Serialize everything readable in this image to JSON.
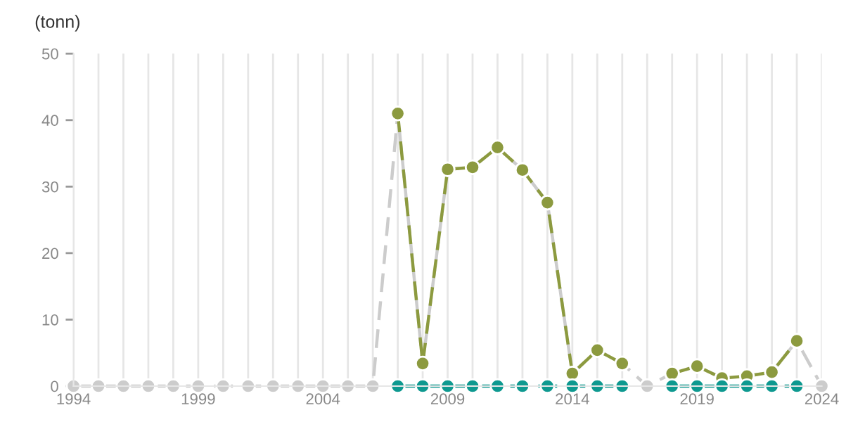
{
  "chart_data": {
    "type": "line",
    "ylabel": "(tonn)",
    "x": [
      1994,
      1995,
      1996,
      1997,
      1998,
      1999,
      2000,
      2001,
      2002,
      2003,
      2004,
      2005,
      2006,
      2007,
      2008,
      2009,
      2010,
      2011,
      2012,
      2013,
      2014,
      2015,
      2016,
      2017,
      2018,
      2019,
      2020,
      2021,
      2022,
      2023,
      2024
    ],
    "series": [
      {
        "color": "#cccccc",
        "line_style": "dashed",
        "values": [
          0,
          0,
          0,
          0,
          0,
          0,
          0,
          0,
          0,
          0,
          0,
          0,
          0,
          41.0,
          3.4,
          32.6,
          32.9,
          35.9,
          32.5,
          27.6,
          1.9,
          5.4,
          3.4,
          0,
          1.9,
          3.0,
          1.2,
          1.5,
          2.1,
          6.8,
          0
        ]
      },
      {
        "color": "#8c9a3f",
        "line_style": "dashed",
        "values": [
          null,
          null,
          null,
          null,
          null,
          null,
          null,
          null,
          null,
          null,
          null,
          null,
          null,
          41.0,
          3.4,
          32.6,
          32.9,
          35.9,
          32.5,
          27.6,
          1.9,
          5.4,
          3.4,
          null,
          1.9,
          3.0,
          1.2,
          1.5,
          2.1,
          6.8,
          null
        ]
      },
      {
        "color": "#0e9990",
        "line_style": "dashed",
        "values": [
          null,
          null,
          null,
          null,
          null,
          null,
          null,
          null,
          null,
          null,
          null,
          null,
          null,
          0,
          0,
          0,
          0,
          0,
          0,
          0,
          0,
          0,
          0,
          null,
          0,
          0,
          0,
          0,
          0,
          0,
          null
        ]
      }
    ],
    "xlim": [
      1994,
      2024
    ],
    "xticks": [
      1994,
      {
        "value": 1995,
        "label": null
      },
      {
        "value": 1996,
        "label": null
      },
      {
        "value": 1997,
        "label": null
      },
      {
        "value": 1998,
        "label": null
      },
      1999,
      {
        "value": 2000,
        "label": null
      },
      {
        "value": 2001,
        "label": null
      },
      {
        "value": 2002,
        "label": null
      },
      {
        "value": 2003,
        "label": null
      },
      2004,
      {
        "value": 2005,
        "label": null
      },
      {
        "value": 2006,
        "label": null
      },
      {
        "value": 2007,
        "label": null
      },
      {
        "value": 2008,
        "label": null
      },
      2009,
      {
        "value": 2010,
        "label": null
      },
      {
        "value": 2011,
        "label": null
      },
      {
        "value": 2012,
        "label": null
      },
      {
        "value": 2013,
        "label": null
      },
      2014,
      {
        "value": 2015,
        "label": null
      },
      {
        "value": 2016,
        "label": null
      },
      {
        "value": 2017,
        "label": null
      },
      {
        "value": 2018,
        "label": null
      },
      2019,
      {
        "value": 2020,
        "label": null
      },
      {
        "value": 2021,
        "label": null
      },
      {
        "value": 2022,
        "label": null
      },
      {
        "value": 2023,
        "label": null
      },
      2024
    ],
    "ylim": [
      0,
      50
    ],
    "yticks": [
      0,
      10,
      20,
      30,
      40,
      50
    ],
    "grid": "x",
    "marker": "circle",
    "legend": false
  }
}
